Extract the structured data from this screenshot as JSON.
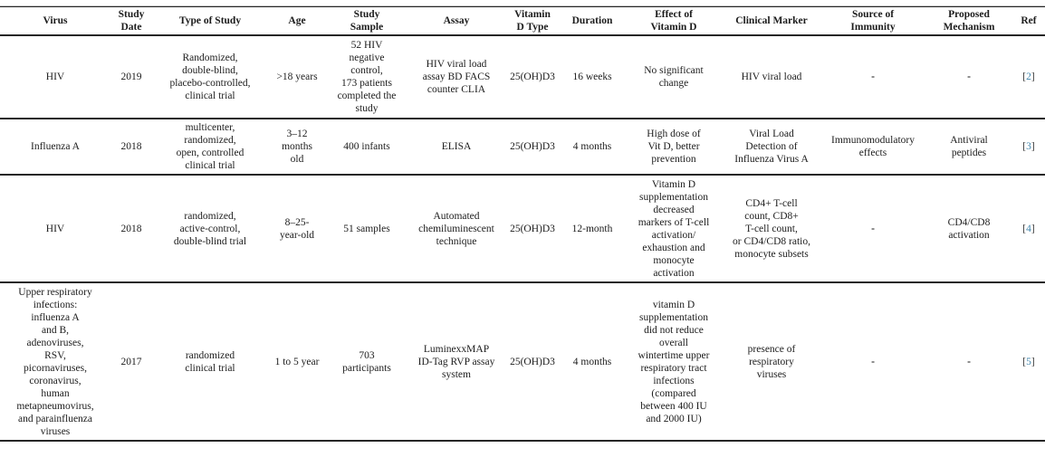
{
  "colors": {
    "rule": "#262626",
    "text": "#1c1c1c",
    "ref_number": "#4186ad",
    "ref_bracket": "#3a3a3a",
    "top_crop_line": "#c4c4c4",
    "background": "#ffffff"
  },
  "table": {
    "columns": [
      {
        "key": "virus",
        "label": "Virus"
      },
      {
        "key": "study_date",
        "label": "Study\nDate"
      },
      {
        "key": "type_of_study",
        "label": "Type of Study"
      },
      {
        "key": "age",
        "label": "Age"
      },
      {
        "key": "study_sample",
        "label": "Study\nSample"
      },
      {
        "key": "assay",
        "label": "Assay"
      },
      {
        "key": "vitamin_d_type",
        "label": "Vitamin\nD Type"
      },
      {
        "key": "duration",
        "label": "Duration"
      },
      {
        "key": "effect_of_vitamin_d",
        "label": "Effect of\nVitamin D"
      },
      {
        "key": "clinical_marker",
        "label": "Clinical Marker"
      },
      {
        "key": "source_of_immunity",
        "label": "Source of\nImmunity"
      },
      {
        "key": "proposed_mechanism",
        "label": "Proposed\nMechanism"
      },
      {
        "key": "ref",
        "label": "Ref"
      }
    ],
    "rows": [
      {
        "virus": "HIV",
        "study_date": "2019",
        "type_of_study": "Randomized,\ndouble-blind,\nplacebo-controlled,\nclinical trial",
        "age": ">18 years",
        "study_sample": "52 HIV\nnegative\ncontrol,\n173 patients\ncompleted the\nstudy",
        "assay": "HIV viral load\nassay BD FACS\ncounter CLIA",
        "vitamin_d_type": "25(OH)D3",
        "duration": "16 weeks",
        "effect_of_vitamin_d": "No significant\nchange",
        "clinical_marker": "HIV viral load",
        "source_of_immunity": "-",
        "proposed_mechanism": "-",
        "ref": {
          "open": "[",
          "number": "2",
          "close": "]"
        }
      },
      {
        "virus": "Influenza A",
        "study_date": "2018",
        "type_of_study": "multicenter,\nrandomized,\nopen, controlled\nclinical trial",
        "age": "3–12\nmonths\nold",
        "study_sample": "400 infants",
        "assay": "ELISA",
        "vitamin_d_type": "25(OH)D3",
        "duration": "4 months",
        "effect_of_vitamin_d": "High dose of\nVit D, better\nprevention",
        "clinical_marker": "Viral Load\nDetection of\nInfluenza Virus A",
        "source_of_immunity": "Immunomodulatory\neffects",
        "proposed_mechanism": "Antiviral\npeptides",
        "ref": {
          "open": "[",
          "number": "3",
          "close": "]"
        }
      },
      {
        "virus": "HIV",
        "study_date": "2018",
        "type_of_study": "randomized,\nactive-control,\ndouble-blind trial",
        "age": "8–25-\nyear-old",
        "study_sample": "51 samples",
        "assay": "Automated\nchemiluminescent\ntechnique",
        "vitamin_d_type": "25(OH)D3",
        "duration": "12-month",
        "effect_of_vitamin_d": "Vitamin D\nsupplementation\ndecreased\nmarkers of T-cell\nactivation/\nexhaustion and\nmonocyte\nactivation",
        "clinical_marker": "CD4+ T-cell\ncount, CD8+\nT-cell count,\nor CD4/CD8 ratio,\nmonocyte subsets",
        "source_of_immunity": "-",
        "proposed_mechanism": "CD4/CD8\nactivation",
        "ref": {
          "open": "[",
          "number": "4",
          "close": "]"
        }
      },
      {
        "virus": "Upper respiratory\ninfections:\ninfluenza A\nand B,\nadenoviruses,\nRSV,\npicornaviruses,\ncoronavirus,\nhuman\nmetapneumovirus,\nand parainfluenza\nviruses",
        "study_date": "2017",
        "type_of_study": "randomized\nclinical trial",
        "age": "1 to 5 year",
        "study_sample": "703\nparticipants",
        "assay": "LuminexxMAP\nID-Tag RVP assay\nsystem",
        "vitamin_d_type": "25(OH)D3",
        "duration": "4 months",
        "effect_of_vitamin_d": "vitamin D\nsupplementation\ndid not reduce\noverall\nwintertime upper\nrespiratory tract\ninfections\n(compared\nbetween 400 IU\nand 2000 IU)",
        "clinical_marker": "presence of\nrespiratory\nviruses",
        "source_of_immunity": "-",
        "proposed_mechanism": "-",
        "ref": {
          "open": "[",
          "number": "5",
          "close": "]"
        }
      }
    ]
  }
}
